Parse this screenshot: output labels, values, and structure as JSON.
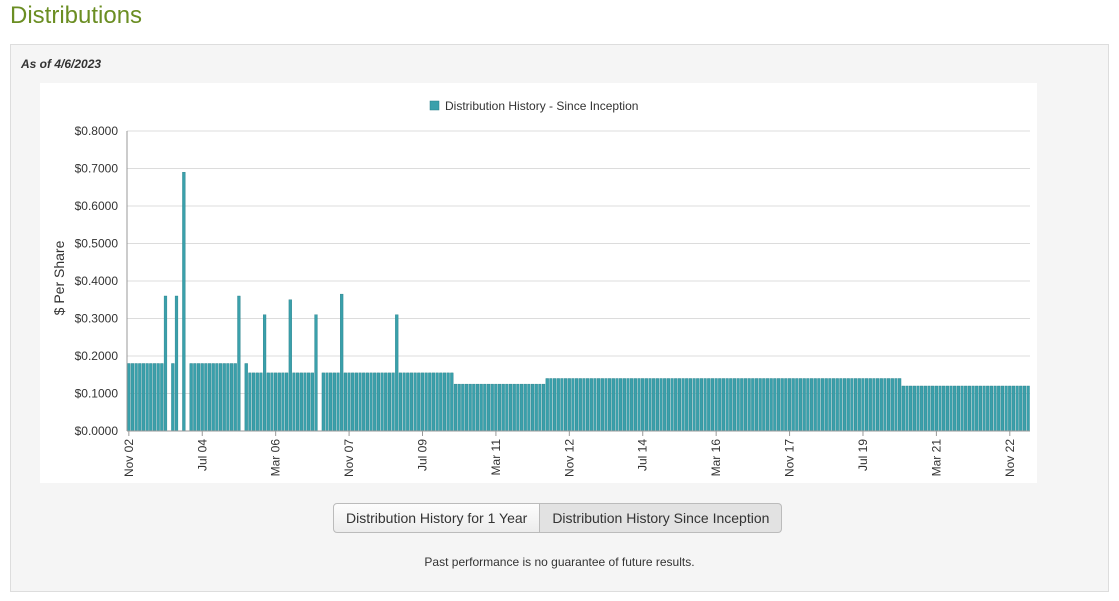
{
  "page": {
    "title": "Distributions"
  },
  "panel": {
    "as_of": "As of 4/6/2023",
    "buttons": [
      "Distribution History for 1 Year",
      "Distribution History Since Inception"
    ],
    "selected_button": "Distribution History Since Inception",
    "disclaimer": "Past performance is no guarantee of future results."
  },
  "colors": {
    "title": "#6b8e23",
    "bar": "#3aa0ab",
    "bar_edge": "#257e88"
  },
  "chart_data": {
    "type": "bar",
    "title": "",
    "xlabel": "",
    "ylabel": "$ Per Share",
    "legend": [
      "Distribution History - Since Inception"
    ],
    "legend_position": "top-center",
    "ylim": [
      0,
      0.8
    ],
    "y_ticks": [
      "$0.0000",
      "$0.1000",
      "$0.2000",
      "$0.3000",
      "$0.4000",
      "$0.5000",
      "$0.6000",
      "$0.7000",
      "$0.8000"
    ],
    "x_ticks": [
      "Nov 02",
      "Jul 04",
      "Mar 06",
      "Nov 07",
      "Jul 09",
      "Mar 11",
      "Nov 12",
      "Jul 14",
      "Mar 16",
      "Nov 17",
      "Jul 19",
      "Mar 21",
      "Nov 22"
    ],
    "grid": true,
    "series": [
      {
        "name": "Distribution History - Since Inception",
        "segments": [
          {
            "from": "2002-11",
            "to": "2003-08",
            "value": 0.18
          },
          {
            "from": "2003-09",
            "to": "2003-09",
            "value": 0.36
          },
          {
            "from": "2003-11",
            "to": "2003-11",
            "value": 0.18
          },
          {
            "from": "2003-12",
            "to": "2003-12",
            "value": 0.36
          },
          {
            "from": "2004-02",
            "to": "2004-02",
            "value": 0.69
          },
          {
            "from": "2004-04",
            "to": "2005-04",
            "value": 0.18
          },
          {
            "from": "2005-05",
            "to": "2005-05",
            "value": 0.36
          },
          {
            "from": "2005-07",
            "to": "2005-07",
            "value": 0.18
          },
          {
            "from": "2005-08",
            "to": "2005-11",
            "value": 0.155
          },
          {
            "from": "2005-12",
            "to": "2005-12",
            "value": 0.31
          },
          {
            "from": "2006-01",
            "to": "2006-06",
            "value": 0.155
          },
          {
            "from": "2006-07",
            "to": "2006-07",
            "value": 0.35
          },
          {
            "from": "2006-08",
            "to": "2007-01",
            "value": 0.155
          },
          {
            "from": "2007-02",
            "to": "2007-02",
            "value": 0.31
          },
          {
            "from": "2007-04",
            "to": "2007-08",
            "value": 0.155
          },
          {
            "from": "2007-09",
            "to": "2007-09",
            "value": 0.365
          },
          {
            "from": "2007-10",
            "to": "2008-11",
            "value": 0.155
          },
          {
            "from": "2008-12",
            "to": "2008-12",
            "value": 0.31
          },
          {
            "from": "2009-01",
            "to": "2010-03",
            "value": 0.155
          },
          {
            "from": "2010-04",
            "to": "2012-04",
            "value": 0.125
          },
          {
            "from": "2012-05",
            "to": "2020-05",
            "value": 0.14
          },
          {
            "from": "2020-06",
            "to": "2023-04",
            "value": 0.12
          }
        ]
      }
    ]
  }
}
